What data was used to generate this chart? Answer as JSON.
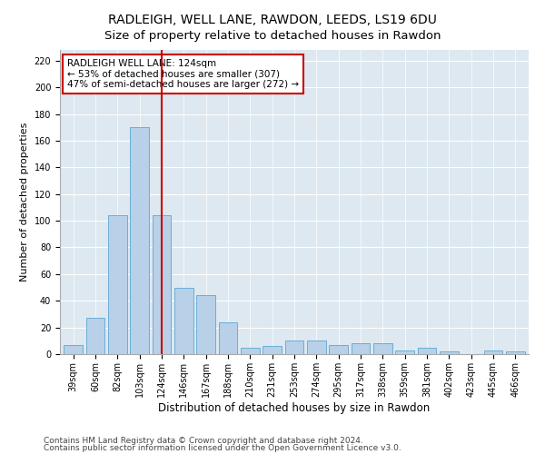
{
  "title": "RADLEIGH, WELL LANE, RAWDON, LEEDS, LS19 6DU",
  "subtitle": "Size of property relative to detached houses in Rawdon",
  "xlabel": "Distribution of detached houses by size in Rawdon",
  "ylabel": "Number of detached properties",
  "categories": [
    "39sqm",
    "60sqm",
    "82sqm",
    "103sqm",
    "124sqm",
    "146sqm",
    "167sqm",
    "188sqm",
    "210sqm",
    "231sqm",
    "253sqm",
    "274sqm",
    "295sqm",
    "317sqm",
    "338sqm",
    "359sqm",
    "381sqm",
    "402sqm",
    "423sqm",
    "445sqm",
    "466sqm"
  ],
  "values": [
    7,
    27,
    104,
    170,
    104,
    50,
    44,
    24,
    5,
    6,
    10,
    10,
    7,
    8,
    8,
    3,
    5,
    2,
    0,
    3,
    2
  ],
  "bar_color": "#b8d0e8",
  "bar_edge_color": "#6baed6",
  "vline_x": 4,
  "vline_color": "#cc0000",
  "annotation_text": "RADLEIGH WELL LANE: 124sqm\n← 53% of detached houses are smaller (307)\n47% of semi-detached houses are larger (272) →",
  "annotation_box_color": "#ffffff",
  "annotation_box_edge": "#cc0000",
  "ylim": [
    0,
    228
  ],
  "yticks": [
    0,
    20,
    40,
    60,
    80,
    100,
    120,
    140,
    160,
    180,
    200,
    220
  ],
  "footer1": "Contains HM Land Registry data © Crown copyright and database right 2024.",
  "footer2": "Contains public sector information licensed under the Open Government Licence v3.0.",
  "plot_bg_color": "#dde8f0",
  "title_fontsize": 10,
  "subtitle_fontsize": 9.5,
  "tick_fontsize": 7,
  "xlabel_fontsize": 8.5,
  "ylabel_fontsize": 8,
  "footer_fontsize": 6.5,
  "ann_fontsize": 7.5
}
